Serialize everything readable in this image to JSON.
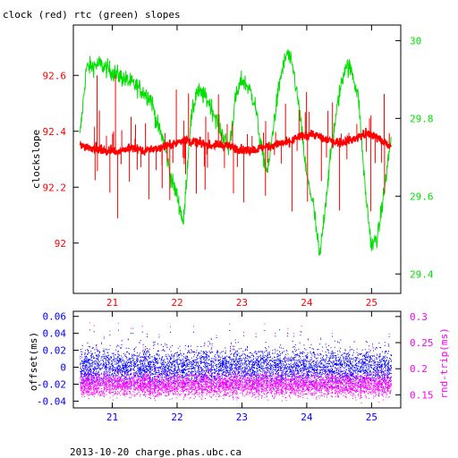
{
  "title": "clock (red) rtc (green) slopes",
  "footer": "2013-10-20 charge.phas.ubc.ca",
  "colors": {
    "red": "#ff0000",
    "green": "#00e000",
    "blue": "#0000ff",
    "magenta": "#ff00ff",
    "black": "#000000"
  },
  "chart_data": [
    {
      "type": "line",
      "title": "clock (red) rtc (green) slopes",
      "xlabel": "",
      "ylabel": "clockslope",
      "ylabel_right": "",
      "x_ticks": [
        "21",
        "22",
        "23",
        "24",
        "25"
      ],
      "y_left_ticks": [
        "92",
        "92.2",
        "92.4",
        "92.6"
      ],
      "y_right_ticks": [
        "29.4",
        "29.6",
        "29.8",
        "30"
      ],
      "xlim": [
        20.4,
        25.45
      ],
      "ylim_left": [
        91.82,
        92.78
      ],
      "ylim_right": [
        29.35,
        30.04
      ],
      "grid": false,
      "series": [
        {
          "name": "clock",
          "axis": "left",
          "color": "#ff0000",
          "x": [
            20.5,
            20.7,
            20.9,
            21.1,
            21.3,
            21.5,
            21.7,
            21.9,
            22.1,
            22.3,
            22.5,
            22.7,
            22.9,
            23.1,
            23.3,
            23.5,
            23.7,
            23.9,
            24.1,
            24.3,
            24.5,
            24.7,
            24.9,
            25.1,
            25.3
          ],
          "y": [
            92.35,
            92.34,
            92.33,
            92.33,
            92.34,
            92.33,
            92.34,
            92.35,
            92.37,
            92.36,
            92.35,
            92.35,
            92.34,
            92.33,
            92.34,
            92.35,
            92.36,
            92.38,
            92.39,
            92.37,
            92.36,
            92.37,
            92.39,
            92.38,
            92.34
          ]
        },
        {
          "name": "rtc",
          "axis": "right",
          "color": "#00e000",
          "x": [
            20.5,
            20.6,
            20.8,
            21.0,
            21.2,
            21.4,
            21.6,
            21.7,
            21.8,
            21.9,
            22.0,
            22.1,
            22.2,
            22.3,
            22.4,
            22.5,
            22.6,
            22.7,
            22.8,
            22.9,
            23.0,
            23.1,
            23.2,
            23.3,
            23.4,
            23.5,
            23.6,
            23.7,
            23.8,
            23.9,
            24.0,
            24.1,
            24.2,
            24.3,
            24.4,
            24.5,
            24.6,
            24.7,
            24.8,
            24.9,
            25.0,
            25.1,
            25.2,
            25.3
          ],
          "y": [
            29.75,
            29.93,
            29.94,
            29.92,
            29.9,
            29.88,
            29.85,
            29.78,
            29.74,
            29.65,
            29.6,
            29.53,
            29.78,
            29.87,
            29.86,
            29.84,
            29.8,
            29.76,
            29.72,
            29.85,
            29.9,
            29.88,
            29.84,
            29.72,
            29.66,
            29.8,
            29.91,
            29.97,
            29.92,
            29.8,
            29.65,
            29.58,
            29.44,
            29.6,
            29.75,
            29.86,
            29.94,
            29.92,
            29.85,
            29.62,
            29.47,
            29.5,
            29.62,
            29.75
          ]
        }
      ]
    },
    {
      "type": "scatter",
      "xlabel": "",
      "ylabel": "offset(ms)",
      "ylabel_right": "rnd-trip(ms)",
      "x_ticks": [
        "21",
        "22",
        "23",
        "24",
        "25"
      ],
      "y_left_ticks": [
        "-0.04",
        "-0.02",
        "0",
        "0.02",
        "0.04",
        "0.06"
      ],
      "y_right_ticks": [
        "0.15",
        "0.2",
        "0.25",
        "0.3"
      ],
      "xlim": [
        20.4,
        25.45
      ],
      "ylim_left": [
        -0.048,
        0.066
      ],
      "ylim_right": [
        0.125,
        0.31
      ],
      "grid": false,
      "series": [
        {
          "name": "offset",
          "axis": "left",
          "color": "#0000ff",
          "center": 0.0,
          "spread": 0.02,
          "outlier_max": 0.045
        },
        {
          "name": "rnd-trip",
          "axis": "right",
          "color": "#ff00ff",
          "center": 0.17,
          "spread": 0.02,
          "outlier_max": 0.29
        }
      ]
    }
  ]
}
